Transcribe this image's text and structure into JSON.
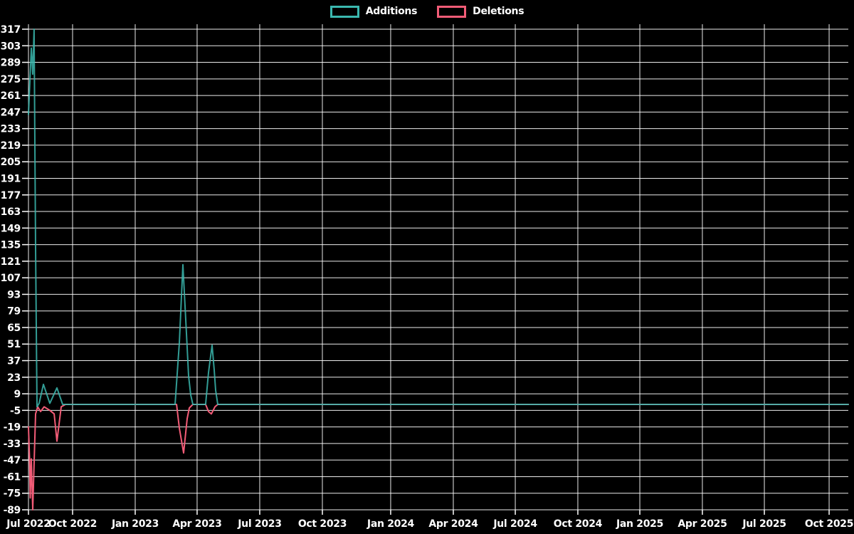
{
  "page": {
    "background": "#000000",
    "grid_color": "rgba(255,255,255,0.92)",
    "text_color": "#ffffff"
  },
  "legend": {
    "position": "top-center",
    "items": [
      {
        "label": "Additions",
        "color": "#3bb8af"
      },
      {
        "label": "Deletions",
        "color": "#f25c77"
      }
    ]
  },
  "chart_data": {
    "type": "line",
    "title": "",
    "xlabel": "",
    "ylabel": "",
    "grid": true,
    "legend_position": "top-center",
    "x_range_label": "Jul 2022 - Oct 2025",
    "x_axis": {
      "ticks": [
        {
          "label": "Jul 2022",
          "f": 0.0
        },
        {
          "label": "Oct 2022",
          "f": 0.0538
        },
        {
          "label": "Jan 2023",
          "f": 0.1302
        },
        {
          "label": "Apr 2023",
          "f": 0.2057
        },
        {
          "label": "Jul 2023",
          "f": 0.2821
        },
        {
          "label": "Oct 2023",
          "f": 0.3585
        },
        {
          "label": "Jan 2024",
          "f": 0.4418
        },
        {
          "label": "Apr 2024",
          "f": 0.5182
        },
        {
          "label": "Jul 2024",
          "f": 0.5938
        },
        {
          "label": "Oct 2024",
          "f": 0.6701
        },
        {
          "label": "Jan 2025",
          "f": 0.7457
        },
        {
          "label": "Apr 2025",
          "f": 0.822
        },
        {
          "label": "Jul 2025",
          "f": 0.8976
        },
        {
          "label": "Oct 2025",
          "f": 0.9766
        }
      ]
    },
    "y_axis": {
      "min": -89,
      "max": 317,
      "step": 14,
      "ticks": [
        317,
        303,
        289,
        275,
        261,
        247,
        233,
        219,
        205,
        191,
        177,
        163,
        149,
        135,
        121,
        107,
        93,
        79,
        65,
        51,
        37,
        23,
        9,
        -5,
        -19,
        -33,
        -47,
        -61,
        -75,
        -89
      ]
    },
    "series": [
      {
        "name": "Additions",
        "color": "#3bb8af",
        "points": [
          [
            0.0,
            245
          ],
          [
            0.0035,
            301
          ],
          [
            0.0052,
            279
          ],
          [
            0.0069,
            317
          ],
          [
            0.0087,
            132
          ],
          [
            0.0104,
            -2
          ],
          [
            0.013,
            1
          ],
          [
            0.0182,
            17
          ],
          [
            0.026,
            1
          ],
          [
            0.0347,
            14
          ],
          [
            0.0417,
            0
          ],
          [
            0.1788,
            0
          ],
          [
            0.184,
            52
          ],
          [
            0.1884,
            118
          ],
          [
            0.1927,
            60
          ],
          [
            0.1953,
            24
          ],
          [
            0.1979,
            8
          ],
          [
            0.2005,
            0
          ],
          [
            0.2161,
            0
          ],
          [
            0.2196,
            27
          ],
          [
            0.224,
            50
          ],
          [
            0.2266,
            29
          ],
          [
            0.2283,
            12
          ],
          [
            0.2309,
            0
          ],
          [
            1.0,
            0
          ]
        ]
      },
      {
        "name": "Deletions",
        "color": "#f25c77",
        "points": [
          [
            0.0,
            -19
          ],
          [
            0.0013,
            -45
          ],
          [
            0.0022,
            -79
          ],
          [
            0.0035,
            -46
          ],
          [
            0.0052,
            -89
          ],
          [
            0.0069,
            -50
          ],
          [
            0.0087,
            -8
          ],
          [
            0.0113,
            -2
          ],
          [
            0.0148,
            -6
          ],
          [
            0.0191,
            -2
          ],
          [
            0.026,
            -5
          ],
          [
            0.0313,
            -8
          ],
          [
            0.0347,
            -31
          ],
          [
            0.0399,
            -2
          ],
          [
            0.0451,
            0
          ],
          [
            0.1806,
            0
          ],
          [
            0.184,
            -20
          ],
          [
            0.1892,
            -41
          ],
          [
            0.1936,
            -12
          ],
          [
            0.1962,
            -3
          ],
          [
            0.2005,
            0
          ],
          [
            0.2161,
            0
          ],
          [
            0.2196,
            -6
          ],
          [
            0.2231,
            -8
          ],
          [
            0.2274,
            -2
          ],
          [
            0.2309,
            0
          ],
          [
            1.0,
            0
          ]
        ]
      }
    ]
  }
}
